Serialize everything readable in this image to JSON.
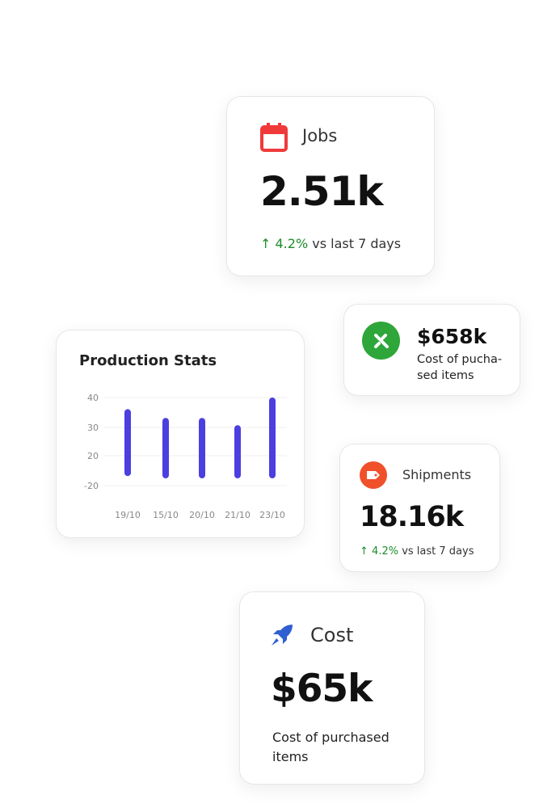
{
  "jobs": {
    "label": "Jobs",
    "value": "2.51k",
    "change": "4.2%",
    "change_suffix": " vs last 7 days",
    "arrow": "↑",
    "icon": "calendar-icon",
    "accent": "#f03a3a"
  },
  "purchased": {
    "value": "$658k",
    "description": "Cost of pucha-sed items",
    "icon": "tools-icon",
    "accent": "#2ea63a"
  },
  "production": {
    "title": "Production Stats"
  },
  "shipments": {
    "label": "Shipments",
    "value": "18.16k",
    "change": "4.2%",
    "change_suffix": " vs last 7 days",
    "arrow": "↑",
    "icon": "tag-icon",
    "accent": "#f0502a"
  },
  "cost": {
    "label": "Cost",
    "value": "$65k",
    "description": "Cost of purchased items",
    "icon": "rocket-icon",
    "accent": "#2f5fd0"
  },
  "chart_data": {
    "type": "bar",
    "title": "Production Stats",
    "categories": [
      "19/10",
      "15/10",
      "20/10",
      "21/10",
      "23/10"
    ],
    "values": [
      36,
      33,
      33,
      30.5,
      40
    ],
    "low": [
      13,
      12,
      12,
      12,
      12
    ],
    "yticks": [
      "40",
      "30",
      "20",
      "-20"
    ],
    "grid": true,
    "color": "#4b3fe0"
  }
}
